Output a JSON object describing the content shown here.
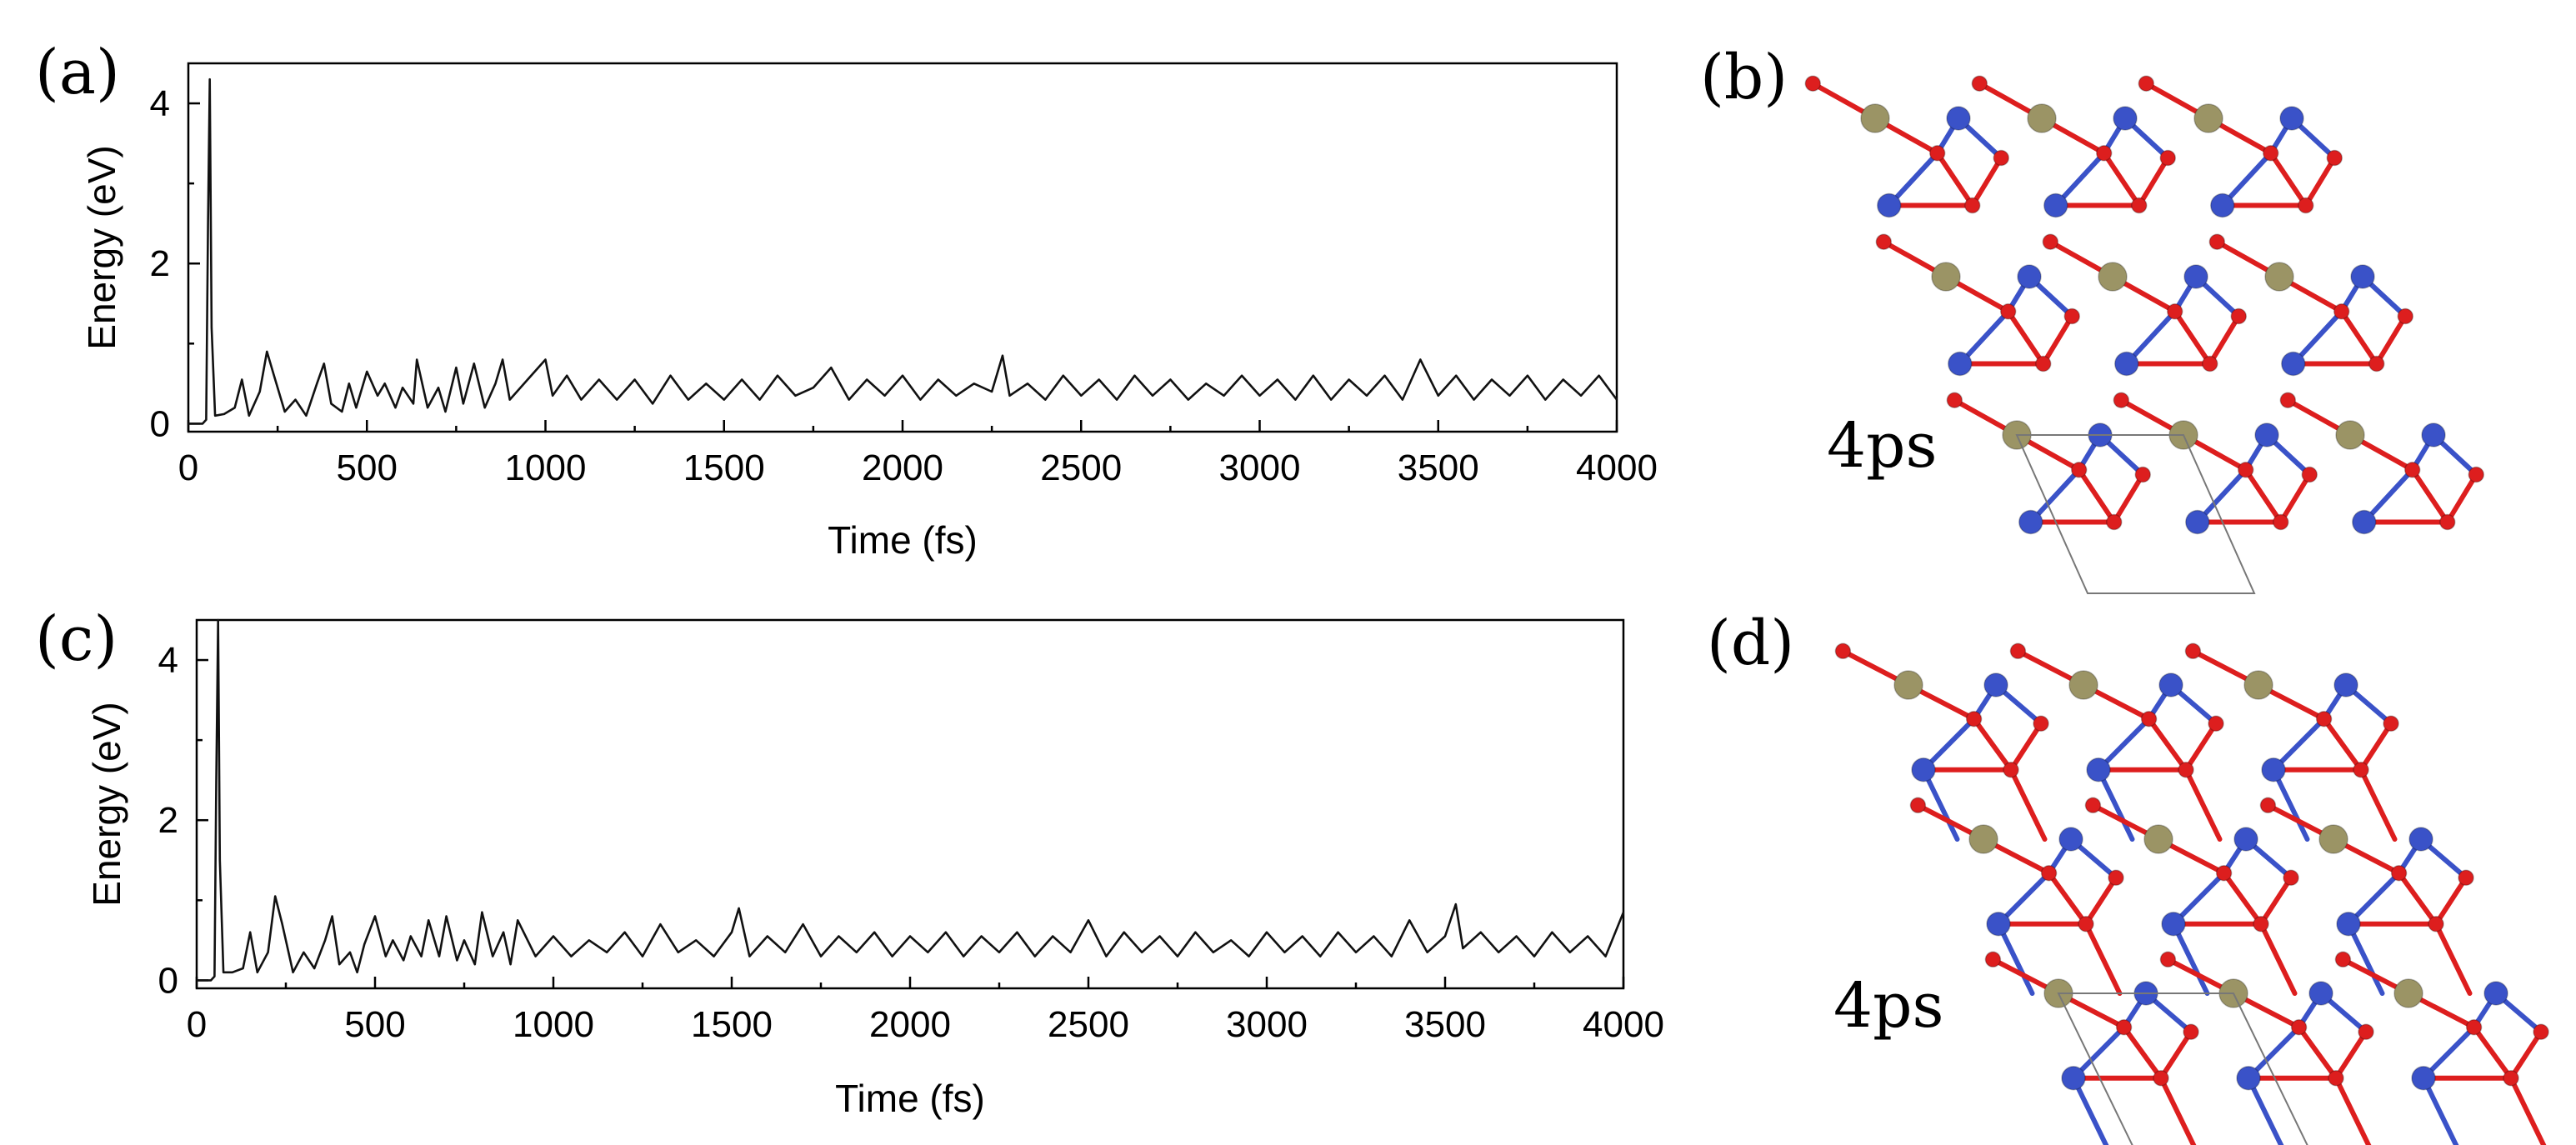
{
  "panels": {
    "a": "(a)",
    "b": "(b)",
    "c": "(c)",
    "d": "(d)"
  },
  "chart_data": [
    {
      "id": "a",
      "type": "line",
      "xlabel": "Time (fs)",
      "ylabel": "Energy (eV)",
      "xlim": [
        0,
        4000
      ],
      "ylim": [
        -0.1,
        4.5
      ],
      "xticks": [
        "0",
        "500",
        "1000",
        "1500",
        "2000",
        "2500",
        "3000",
        "3500",
        "4000"
      ],
      "yticks": [
        "0",
        "2",
        "4"
      ],
      "grid": false,
      "legend": "none",
      "series": [
        {
          "x": [
            0,
            40,
            50,
            55,
            60,
            65,
            75,
            100,
            130,
            150,
            170,
            200,
            220,
            240,
            270,
            300,
            330,
            360,
            380,
            400,
            430,
            450,
            470,
            500,
            530,
            550,
            580,
            600,
            630,
            640,
            670,
            700,
            720,
            750,
            770,
            800,
            830,
            860,
            880,
            900,
            950,
            1000,
            1020,
            1060,
            1100,
            1150,
            1200,
            1250,
            1300,
            1350,
            1400,
            1450,
            1500,
            1550,
            1600,
            1650,
            1700,
            1750,
            1800,
            1850,
            1900,
            1950,
            2000,
            2050,
            2100,
            2150,
            2200,
            2250,
            2280,
            2300,
            2350,
            2400,
            2450,
            2500,
            2550,
            2600,
            2650,
            2700,
            2750,
            2800,
            2850,
            2900,
            2950,
            3000,
            3050,
            3100,
            3150,
            3200,
            3250,
            3300,
            3350,
            3400,
            3450,
            3500,
            3550,
            3600,
            3650,
            3700,
            3750,
            3800,
            3850,
            3900,
            3950,
            4000
          ],
          "y": [
            0.0,
            0.0,
            0.05,
            2.5,
            4.3,
            1.2,
            0.1,
            0.12,
            0.2,
            0.55,
            0.1,
            0.4,
            0.9,
            0.6,
            0.15,
            0.3,
            0.1,
            0.5,
            0.75,
            0.25,
            0.15,
            0.5,
            0.2,
            0.65,
            0.35,
            0.5,
            0.2,
            0.45,
            0.25,
            0.8,
            0.2,
            0.45,
            0.15,
            0.7,
            0.25,
            0.75,
            0.2,
            0.5,
            0.8,
            0.3,
            0.55,
            0.8,
            0.35,
            0.6,
            0.3,
            0.55,
            0.3,
            0.55,
            0.25,
            0.6,
            0.3,
            0.5,
            0.3,
            0.55,
            0.3,
            0.6,
            0.35,
            0.45,
            0.7,
            0.3,
            0.55,
            0.35,
            0.6,
            0.3,
            0.55,
            0.35,
            0.5,
            0.4,
            0.85,
            0.35,
            0.5,
            0.3,
            0.6,
            0.35,
            0.55,
            0.3,
            0.6,
            0.35,
            0.55,
            0.3,
            0.5,
            0.35,
            0.6,
            0.35,
            0.55,
            0.3,
            0.6,
            0.3,
            0.55,
            0.35,
            0.6,
            0.3,
            0.8,
            0.35,
            0.6,
            0.3,
            0.55,
            0.35,
            0.6,
            0.3,
            0.55,
            0.35,
            0.6,
            0.3
          ]
        }
      ]
    },
    {
      "id": "c",
      "type": "line",
      "xlabel": "Time (fs)",
      "ylabel": "Energy (eV)",
      "xlim": [
        0,
        4000
      ],
      "ylim": [
        -0.1,
        4.5
      ],
      "xticks": [
        "0",
        "500",
        "1000",
        "1500",
        "2000",
        "2500",
        "3000",
        "3500",
        "4000"
      ],
      "yticks": [
        "0",
        "2",
        "4"
      ],
      "grid": false,
      "legend": "none",
      "series": [
        {
          "x": [
            0,
            40,
            50,
            55,
            60,
            65,
            75,
            100,
            130,
            150,
            170,
            200,
            220,
            240,
            270,
            300,
            330,
            360,
            380,
            400,
            430,
            450,
            470,
            500,
            530,
            550,
            580,
            600,
            630,
            650,
            680,
            700,
            730,
            750,
            780,
            800,
            830,
            860,
            880,
            900,
            950,
            1000,
            1050,
            1100,
            1150,
            1200,
            1250,
            1300,
            1350,
            1400,
            1450,
            1500,
            1520,
            1550,
            1600,
            1650,
            1700,
            1750,
            1800,
            1850,
            1900,
            1950,
            2000,
            2050,
            2100,
            2150,
            2200,
            2250,
            2300,
            2350,
            2400,
            2450,
            2500,
            2550,
            2600,
            2650,
            2700,
            2750,
            2800,
            2850,
            2900,
            2950,
            3000,
            3050,
            3100,
            3150,
            3200,
            3250,
            3300,
            3350,
            3400,
            3450,
            3500,
            3530,
            3550,
            3600,
            3650,
            3700,
            3750,
            3800,
            3850,
            3900,
            3950,
            4000
          ],
          "y": [
            0.0,
            0.0,
            0.05,
            2.5,
            4.5,
            1.5,
            0.1,
            0.1,
            0.15,
            0.6,
            0.1,
            0.35,
            1.05,
            0.7,
            0.1,
            0.35,
            0.15,
            0.5,
            0.8,
            0.2,
            0.35,
            0.1,
            0.45,
            0.8,
            0.3,
            0.5,
            0.25,
            0.55,
            0.3,
            0.75,
            0.3,
            0.8,
            0.25,
            0.5,
            0.2,
            0.85,
            0.3,
            0.6,
            0.2,
            0.75,
            0.3,
            0.55,
            0.3,
            0.5,
            0.35,
            0.6,
            0.3,
            0.7,
            0.35,
            0.5,
            0.3,
            0.6,
            0.9,
            0.3,
            0.55,
            0.35,
            0.7,
            0.3,
            0.55,
            0.35,
            0.6,
            0.3,
            0.55,
            0.35,
            0.6,
            0.3,
            0.55,
            0.35,
            0.6,
            0.3,
            0.55,
            0.35,
            0.75,
            0.3,
            0.6,
            0.35,
            0.55,
            0.3,
            0.6,
            0.35,
            0.5,
            0.3,
            0.6,
            0.35,
            0.55,
            0.3,
            0.6,
            0.35,
            0.55,
            0.3,
            0.75,
            0.35,
            0.55,
            0.95,
            0.4,
            0.6,
            0.35,
            0.55,
            0.3,
            0.6,
            0.35,
            0.55,
            0.3,
            0.85
          ]
        }
      ]
    }
  ],
  "structures": [
    {
      "id": "b",
      "time_label": "4ps",
      "colors": {
        "blue_atom": "#3a52c8",
        "red_atom": "#dd1e1e",
        "gold_atom": "#9b9465",
        "bond_blue": "#3a52c8",
        "bond_red": "#dd1e1e",
        "cell": "#777777"
      }
    },
    {
      "id": "d",
      "time_label": "4ps",
      "colors": {
        "blue_atom": "#3a52c8",
        "red_atom": "#dd1e1e",
        "gold_atom": "#9b9465",
        "bond_blue": "#3a52c8",
        "bond_red": "#dd1e1e",
        "cell": "#777777"
      }
    }
  ]
}
